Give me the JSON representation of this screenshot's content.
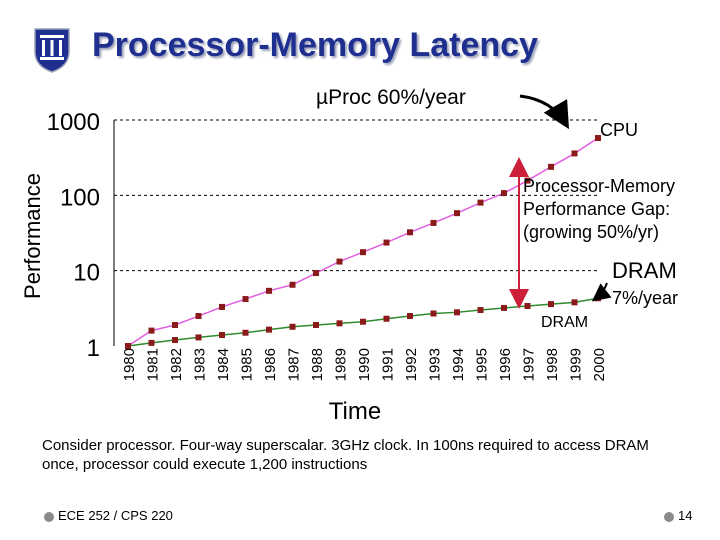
{
  "slide": {
    "title": "Processor-Memory Latency",
    "caption": "Consider processor. Four-way superscalar. 3GHz clock. In 100ns required to access DRAM once, processor could execute 1,200 instructions",
    "footer_course": "ECE 252 / CPS 220",
    "footer_page": "14",
    "crest_icon": "university-shield-icon"
  },
  "chart_data": {
    "type": "line",
    "xlabel": "Time",
    "ylabel": "Performance",
    "y_scale": "log",
    "ylim": [
      1,
      1000
    ],
    "y_ticks": [
      "1",
      "10",
      "100",
      "1000"
    ],
    "categories": [
      "1980",
      "1981",
      "1982",
      "1983",
      "1984",
      "1985",
      "1986",
      "1987",
      "1988",
      "1989",
      "1990",
      "1991",
      "1992",
      "1993",
      "1994",
      "1995",
      "1996",
      "1997",
      "1998",
      "1999",
      "2000"
    ],
    "grid": "horizontal-dashed",
    "series": [
      {
        "name": "CPU",
        "color": "#e060e0",
        "marker_color": "#8b1a1a",
        "values": [
          1,
          1.6,
          1.9,
          2.5,
          3.3,
          4.2,
          5.4,
          6.5,
          9.3,
          13.2,
          17.6,
          23.6,
          32.3,
          43,
          58,
          80,
          107,
          157,
          239,
          360,
          576
        ]
      },
      {
        "name": "DRAM",
        "color": "#2e8b2e",
        "marker_color": "#8b1a1a",
        "values": [
          1,
          1.1,
          1.2,
          1.3,
          1.4,
          1.5,
          1.65,
          1.8,
          1.9,
          2.0,
          2.1,
          2.3,
          2.5,
          2.7,
          2.8,
          3.0,
          3.2,
          3.4,
          3.6,
          3.8,
          4.3
        ]
      }
    ],
    "annotations": {
      "cpu_rate": "µProc 60%/year",
      "cpu_label": "CPU",
      "gap_line1": "Processor-Memory",
      "gap_line2": "Performance Gap:",
      "gap_line3": "(growing 50%/yr)",
      "dram_big": "DRAM",
      "dram_rate": "7%/year",
      "dram_small": "DRAM"
    }
  }
}
